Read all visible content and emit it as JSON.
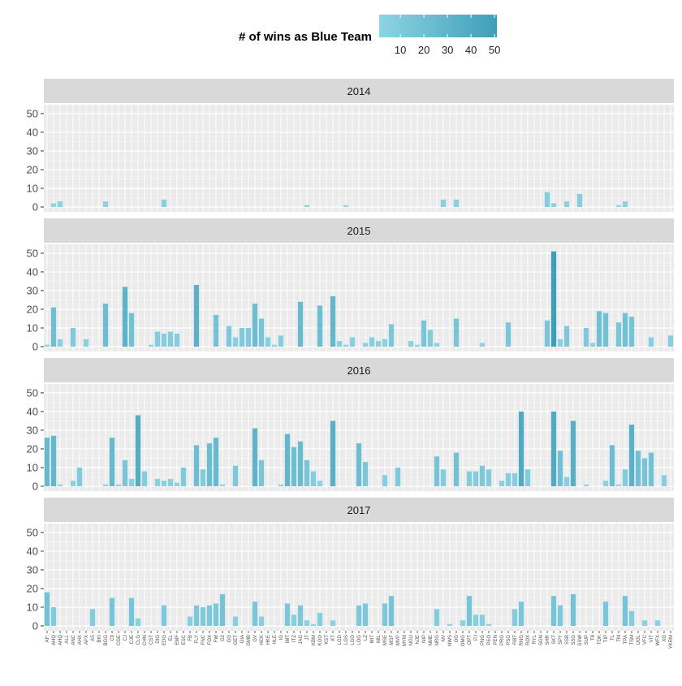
{
  "chart_data": {
    "type": "bar",
    "legend": {
      "title": "# of wins as Blue Team",
      "ticks": [
        10,
        20,
        30,
        40,
        50
      ],
      "range": [
        1,
        51
      ],
      "color_low": "#8dd4e4",
      "color_high": "#3f9fb8",
      "placement": "top"
    },
    "ylim": [
      0,
      53
    ],
    "yticks": [
      0,
      10,
      20,
      30,
      40,
      50
    ],
    "grid": true,
    "categories": [
      "AF:",
      "AHQ",
      "AHQ",
      "ALL",
      "ANC",
      "AHX",
      "APX",
      "AS",
      "BKI",
      "BGG",
      "C9",
      "CGE",
      "CJ",
      "CJE",
      "CLG",
      "CHN",
      "CST",
      "DIG",
      "EDG",
      "EL",
      "EMF",
      "ESC",
      "FB",
      "FLY",
      "FNC",
      "FOX",
      "FW",
      "G2",
      "GG",
      "GET",
      "GIA",
      "GMB",
      "GV",
      "HCK",
      "HKE",
      "HLE",
      "IG",
      "IMT",
      "ITZ",
      "JAG",
      "JT",
      "KBM",
      "KOO",
      "KST",
      "KT",
      "LGD",
      "LGS",
      "LGO",
      "LOG",
      "LZ",
      "MIT",
      "MIL",
      "MSE",
      "MSF",
      "MVP",
      "MYM",
      "NGU",
      "NJE",
      "NIP",
      "NME",
      "NRG",
      "NV",
      "NWS",
      "OG",
      "OMG",
      "OPT",
      "PJ",
      "PNG",
      "PEO",
      "PEN",
      "PRG",
      "PSG",
      "RBT",
      "RNG",
      "ROX",
      "RYL",
      "SGN",
      "SHR",
      "SKT",
      "SPY",
      "SSB",
      "SSG",
      "SSW",
      "SUP",
      "T8",
      "TDK",
      "TIP",
      "TL",
      "TM",
      "TPA",
      "TSM",
      "UOL",
      "VFC",
      "VIT",
      "WFX",
      "XG",
      "YKRM"
    ],
    "facets": [
      {
        "label": "2014",
        "values": {
          "AHQ": 2,
          "AHQ~": 3,
          "BGG": 3,
          "EDG": 4,
          "JT": 1,
          "LGS": 1,
          "NV": 4,
          "OG": 4,
          "SHR": 8,
          "SKT": 2,
          "SSB": 3,
          "SSW": 7,
          "TM": 1,
          "TPA": 3
        }
      },
      {
        "label": "2015",
        "values": {
          "AF:": 1,
          "AHQ": 21,
          "AHQ~": 4,
          "ANC": 10,
          "APX": 4,
          "BGG": 23,
          "CJ": 32,
          "CJE": 18,
          "CST": 1,
          "DIG": 8,
          "EDG": 7,
          "EL": 8,
          "EMF": 7,
          "FLY": 33,
          "FW": 17,
          "GG": 11,
          "GET": 5,
          "GIA": 10,
          "GMB": 10,
          "GV": 23,
          "HCK": 15,
          "HKE": 5,
          "HLE": 1,
          "IG": 6,
          "JAG": 24,
          "KOO": 22,
          "KT": 27,
          "LGD": 3,
          "LGS": 1,
          "LGO": 5,
          "LZ": 2,
          "MIT": 5,
          "MIL": 3,
          "MSE": 4,
          "MSF": 12,
          "NGU": 3,
          "NJE": 1,
          "NIP": 14,
          "NME": 9,
          "NRG": 2,
          "OG": 15,
          "PNG": 2,
          "PSG": 13,
          "SHR": 14,
          "SKT": 51,
          "SPY": 4,
          "SSB": 11,
          "SUP": 10,
          "T8": 2,
          "TDK": 19,
          "TIP": 18,
          "TM": 13,
          "TPA": 18,
          "TSM": 16,
          "VIT": 5,
          "YKRM": 6
        }
      },
      {
        "label": "2016",
        "values": {
          "AF:": 26,
          "AHQ": 27,
          "AHQ~": 1,
          "ANC": 3,
          "AHX": 10,
          "BGG": 1,
          "C9": 26,
          "CGE": 1,
          "CJ": 14,
          "CJE": 4,
          "CLG": 38,
          "CHN": 8,
          "DIG": 4,
          "EDG": 3,
          "EL": 4,
          "EMF": 2,
          "ESC": 10,
          "FLY": 22,
          "FNC": 9,
          "FOX": 23,
          "FW": 26,
          "G2": 1,
          "GET": 11,
          "GV": 31,
          "HCK": 14,
          "IG": 1,
          "IMT": 28,
          "ITZ": 21,
          "JAG": 24,
          "JT": 14,
          "KBM": 8,
          "KOO": 3,
          "KT": 35,
          "LOG": 23,
          "LZ": 13,
          "MSE": 6,
          "MVP": 10,
          "NRG": 16,
          "NV": 9,
          "OG": 18,
          "OPT": 8,
          "PJ": 8,
          "PNG": 11,
          "PEO": 9,
          "PRG": 3,
          "PSG": 7,
          "RBT": 7,
          "RNG": 40,
          "ROX": 9,
          "SKT": 40,
          "SPY": 19,
          "SSB": 5,
          "SSG": 35,
          "SUP": 1,
          "TIP": 3,
          "TL": 22,
          "TM": 1,
          "TPA": 9,
          "TSM": 33,
          "UOL": 19,
          "VFC": 15,
          "VIT": 18,
          "XG": 6
        }
      },
      {
        "label": "2017",
        "values": {
          "AF:": 18,
          "AHQ": 10,
          "AS": 9,
          "C9": 15,
          "CJE": 15,
          "CLG": 4,
          "EDG": 11,
          "FB": 5,
          "FLY": 11,
          "FNC": 10,
          "FOX": 11,
          "FW": 12,
          "G2": 17,
          "GET": 5,
          "GV": 13,
          "HCK": 5,
          "IMT": 12,
          "ITZ": 6,
          "JAG": 11,
          "JT": 3,
          "KBM": 1,
          "KOO": 7,
          "KT": 3,
          "KT~": 15,
          "LOG": 11,
          "LZ": 12,
          "MSE": 12,
          "MSF": 16,
          "NRG": 9,
          "NWS": 1,
          "OMG": 3,
          "OPT": 16,
          "PJ": 6,
          "PNG": 6,
          "PEO": 1,
          "RBT": 9,
          "RNG": 13,
          "SKT": 16,
          "SPY": 11,
          "SSG": 17,
          "TIP": 13,
          "TPA": 16,
          "TSM": 8,
          "VFC": 3,
          "WFX": 3
        }
      }
    ]
  }
}
